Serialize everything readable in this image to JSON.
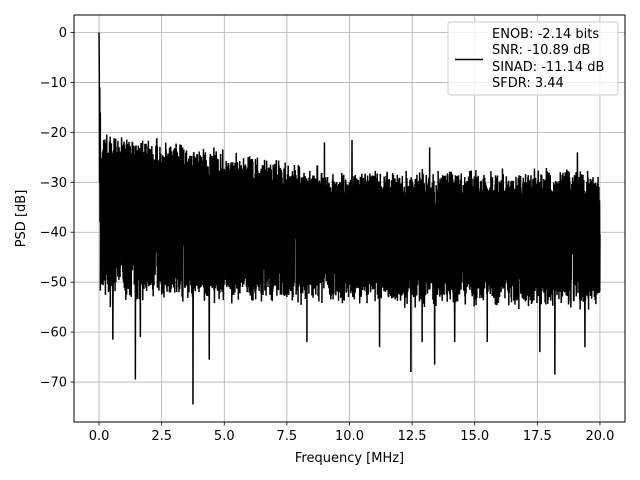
{
  "chart_data": {
    "type": "line",
    "title": "",
    "xlabel": "Frequency [MHz]",
    "ylabel": "PSD [dB]",
    "xlim": [
      -1.0,
      21.0
    ],
    "ylim": [
      -78,
      3.5
    ],
    "xticks": [
      0.0,
      2.5,
      5.0,
      7.5,
      10.0,
      12.5,
      15.0,
      17.5,
      20.0
    ],
    "xtick_labels": [
      "0.0",
      "2.5",
      "5.0",
      "7.5",
      "10.0",
      "12.5",
      "15.0",
      "17.5",
      "20.0"
    ],
    "yticks": [
      0,
      -10,
      -20,
      -30,
      -40,
      -50,
      -60,
      -70
    ],
    "ytick_labels": [
      "0",
      "−10",
      "−20",
      "−30",
      "−40",
      "−50",
      "−60",
      "−70"
    ],
    "grid": true,
    "legend_position": "top-right",
    "legend_entries": [
      "ENOB: -2.14 bits",
      "SNR: -10.89 dB",
      "SINAD: -11.14 dB",
      "SFDR: 3.44"
    ],
    "series": [
      {
        "color": "#000000",
        "frequency_range": [
          0.0,
          20.0
        ],
        "peak": {
          "x": 0.0,
          "y": 0.0
        },
        "noise_floor": {
          "upper_envelope_db": [
            -21,
            -34
          ],
          "lower_envelope_db": [
            -48,
            -50
          ]
        },
        "deep_nulls": [
          {
            "x": 0.45,
            "y": -55
          },
          {
            "x": 0.55,
            "y": -61.5
          },
          {
            "x": 1.45,
            "y": -69.5
          },
          {
            "x": 1.65,
            "y": -61
          },
          {
            "x": 3.75,
            "y": -74.5
          },
          {
            "x": 4.4,
            "y": -65.5
          },
          {
            "x": 8.3,
            "y": -62
          },
          {
            "x": 11.2,
            "y": -63
          },
          {
            "x": 12.45,
            "y": -68
          },
          {
            "x": 12.9,
            "y": -62
          },
          {
            "x": 13.4,
            "y": -66.5
          },
          {
            "x": 14.2,
            "y": -62
          },
          {
            "x": 15.5,
            "y": -62
          },
          {
            "x": 17.6,
            "y": -64
          },
          {
            "x": 18.2,
            "y": -68.5
          },
          {
            "x": 19.4,
            "y": -63
          }
        ],
        "high_spurs": [
          {
            "x": 0.9,
            "y": -21
          },
          {
            "x": 2.3,
            "y": -21.5
          },
          {
            "x": 9.0,
            "y": -22
          },
          {
            "x": 10.1,
            "y": -21.5
          },
          {
            "x": 13.2,
            "y": -23
          },
          {
            "x": 19.1,
            "y": -24
          }
        ]
      }
    ]
  }
}
